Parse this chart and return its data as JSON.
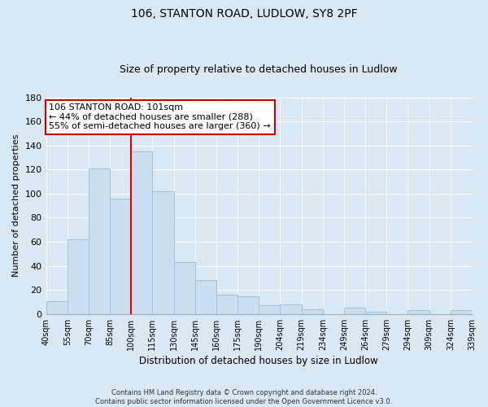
{
  "title": "106, STANTON ROAD, LUDLOW, SY8 2PF",
  "subtitle": "Size of property relative to detached houses in Ludlow",
  "xlabel": "Distribution of detached houses by size in Ludlow",
  "ylabel": "Number of detached properties",
  "bar_labels": [
    "40sqm",
    "55sqm",
    "70sqm",
    "85sqm",
    "100sqm",
    "115sqm",
    "130sqm",
    "145sqm",
    "160sqm",
    "175sqm",
    "190sqm",
    "204sqm",
    "219sqm",
    "234sqm",
    "249sqm",
    "264sqm",
    "279sqm",
    "294sqm",
    "309sqm",
    "324sqm",
    "339sqm"
  ],
  "bar_values": [
    11,
    62,
    121,
    96,
    135,
    102,
    43,
    28,
    16,
    15,
    7,
    8,
    4,
    0,
    5,
    2,
    0,
    3,
    0,
    3
  ],
  "bar_color": "#c9dff0",
  "bar_edge_color": "#9dc3e0",
  "vline_color": "#dd0000",
  "ylim": [
    0,
    180
  ],
  "yticks": [
    0,
    20,
    40,
    60,
    80,
    100,
    120,
    140,
    160,
    180
  ],
  "annotation_title": "106 STANTON ROAD: 101sqm",
  "annotation_line1": "← 44% of detached houses are smaller (288)",
  "annotation_line2": "55% of semi-detached houses are larger (360) →",
  "annotation_box_facecolor": "#ffffff",
  "annotation_box_edgecolor": "#cc0000",
  "footer_line1": "Contains HM Land Registry data © Crown copyright and database right 2024.",
  "footer_line2": "Contains public sector information licensed under the Open Government Licence v3.0.",
  "background_color": "#dae8f4",
  "grid_color": "#ffffff"
}
